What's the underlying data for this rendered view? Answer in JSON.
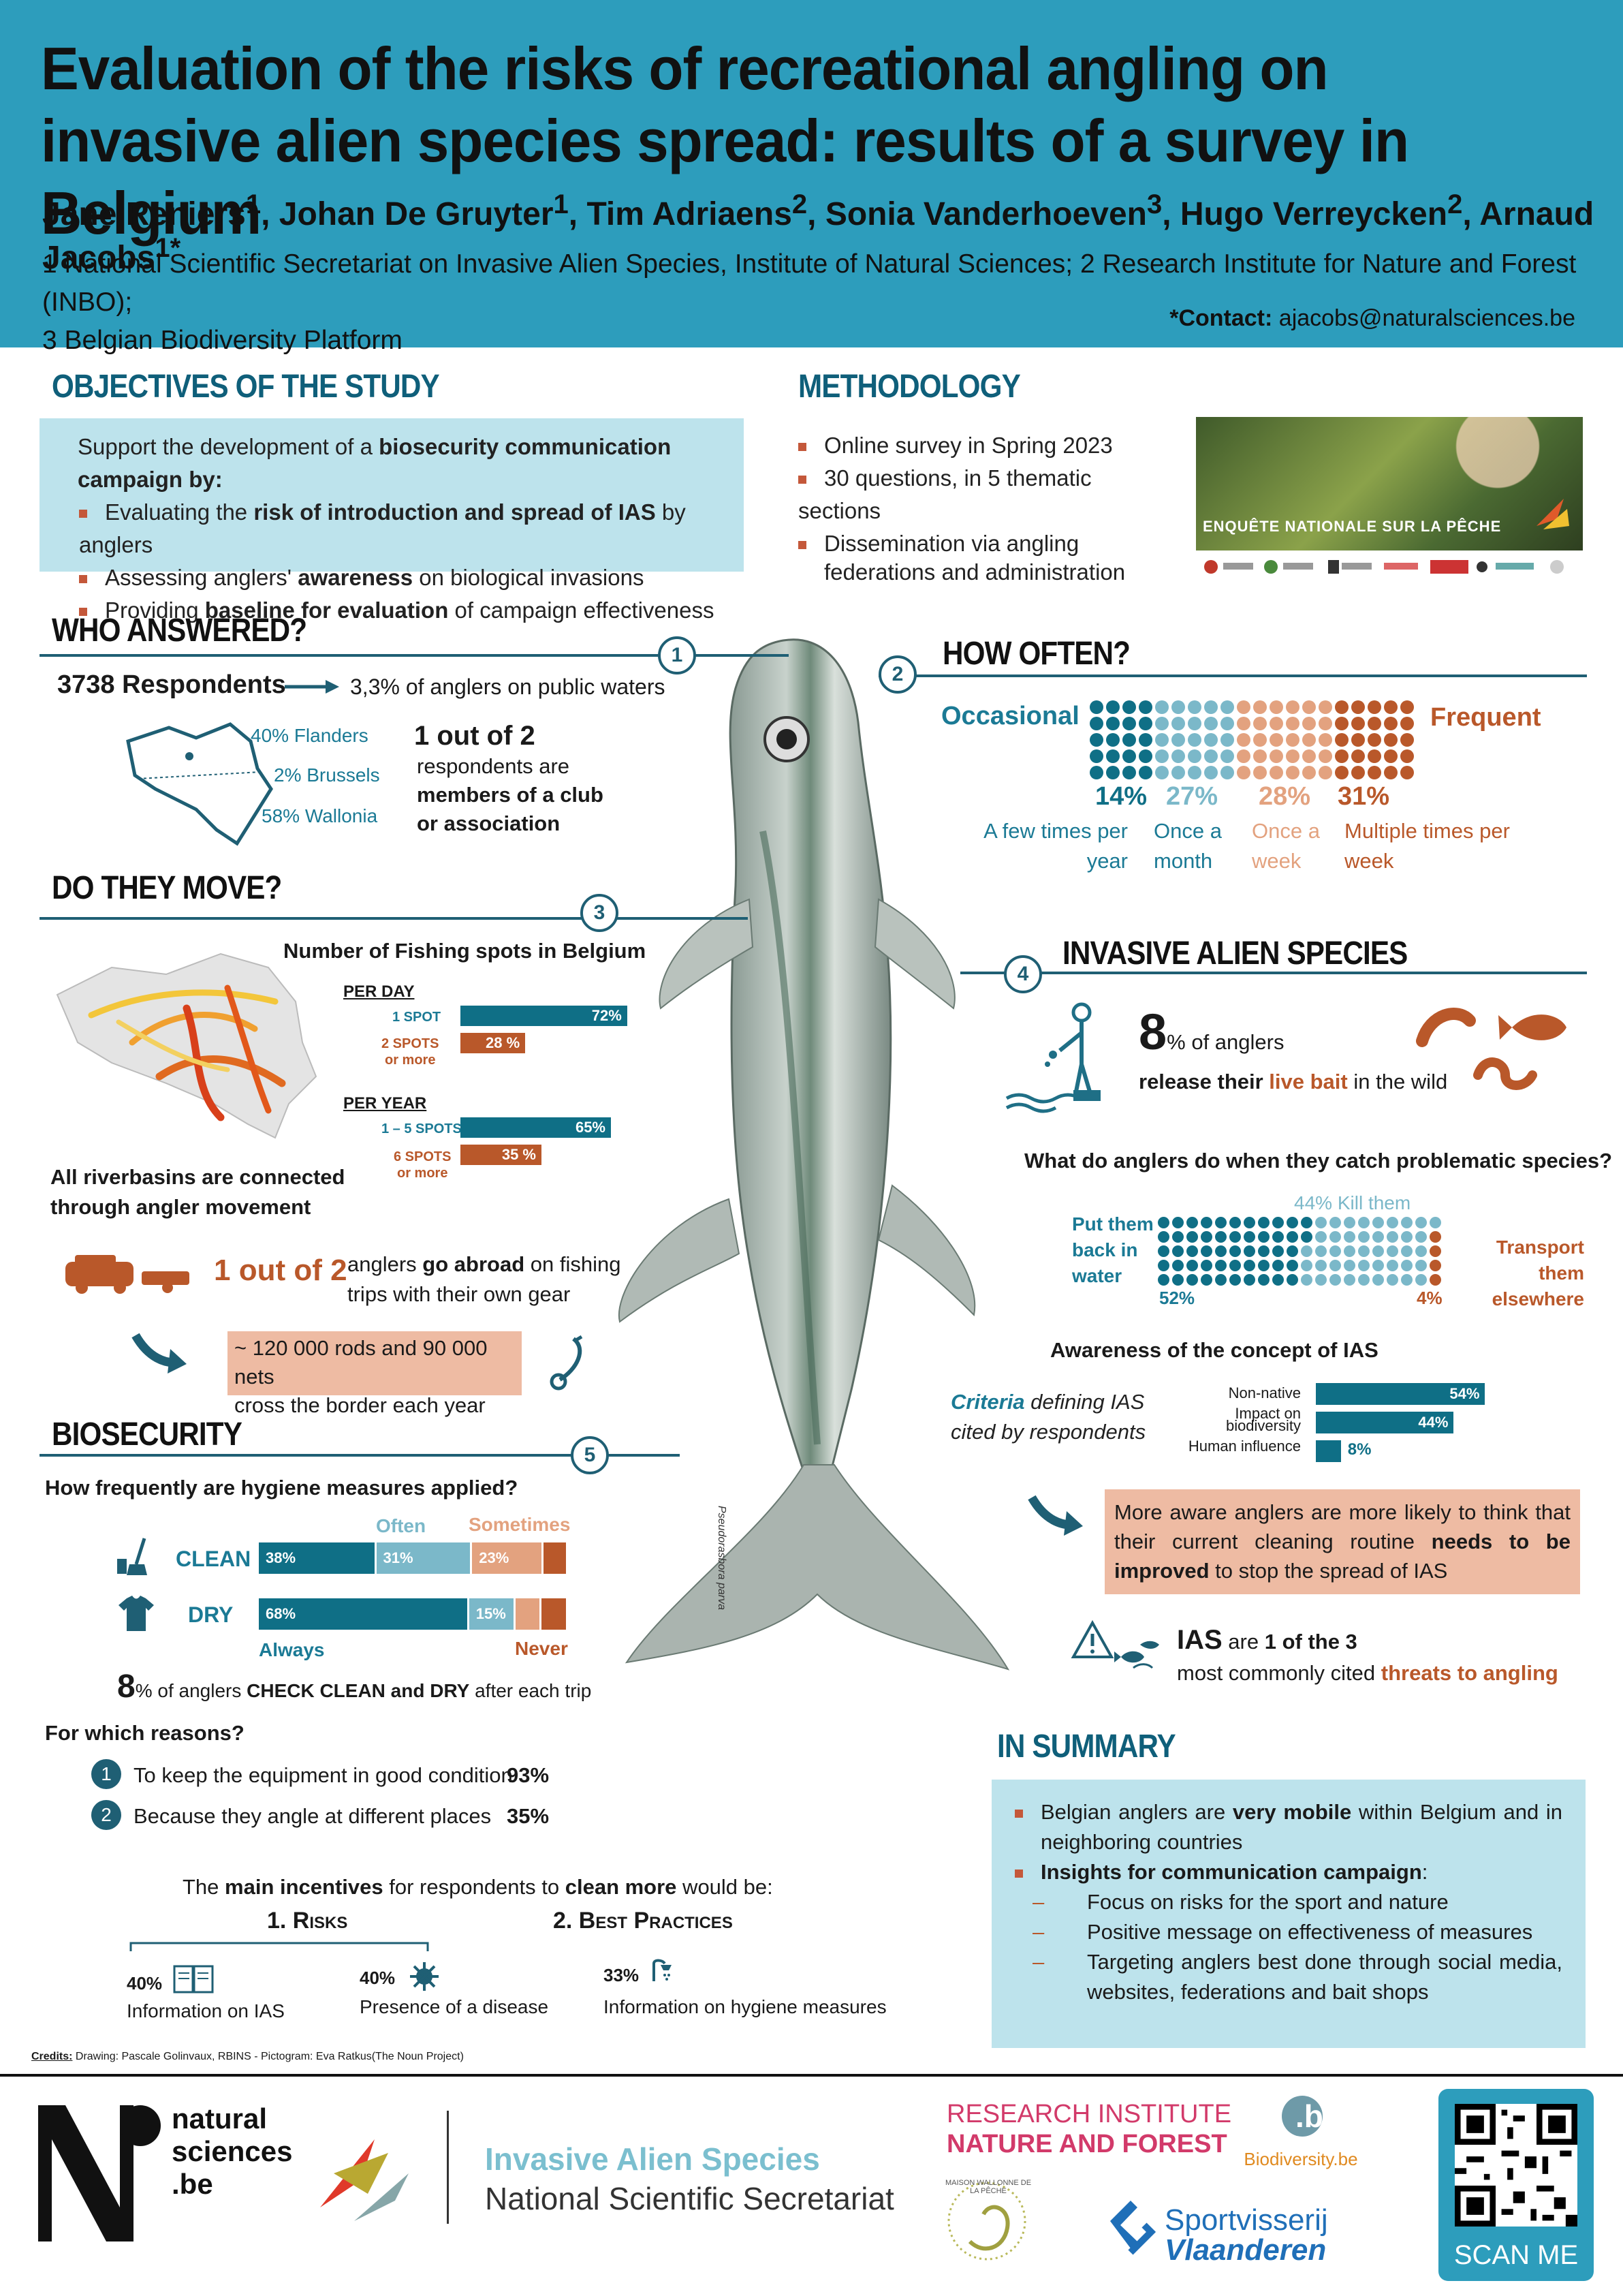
{
  "header": {
    "title": "Evaluation of the risks of recreational angling on invasive alien species spread: results of a survey in Belgium",
    "authors": "Jane Reniers1, Johan De Gruyter1, Tim Adriaens2, Sonia Vanderhoeven3, Hugo Verreycken2, Arnaud Jacobs1*",
    "affil1": "1 National Scientific Secretariat on Invasive Alien Species, Institute of Natural Sciences; 2 Research Institute for Nature and Forest (INBO);",
    "affil2": "3 Belgian Biodiversity Platform",
    "contact_label": "*Contact:",
    "contact_email": "ajacobs@naturalsciences.be"
  },
  "objectives": {
    "title": "OBJECTIVES OF THE STUDY",
    "intro_a": "Support the development of a ",
    "intro_b": "biosecurity communication campaign by:",
    "b1a": "Evaluating the ",
    "b1b": "risk of introduction and spread of IAS",
    "b1c": " by anglers",
    "b2a": "Assessing anglers' ",
    "b2b": "awareness",
    "b2c": " on biological invasions",
    "b3a": "Providing ",
    "b3b": "baseline for evaluation",
    "b3c": " of campaign effectiveness"
  },
  "methodology": {
    "title": "METHODOLOGY",
    "b1": "Online survey in Spring 2023",
    "b2": "30 questions, in 5 thematic sections",
    "b3a": "Dissemination via angling",
    "b3b": "federations and administration",
    "photo_caption": "ENQUÊTE NATIONALE SUR LA PÊCHE"
  },
  "who": {
    "title": "WHO ANSWERED?",
    "num": "1",
    "respondents": "3738 Respondents",
    "share": "3,3% of anglers on public waters",
    "flanders": "40% Flanders",
    "brussels": "2% Brussels",
    "wallonia": "58% Wallonia",
    "club1": "1 out of 2",
    "club2": "respondents are",
    "club3": "members of a club",
    "club4": "or association"
  },
  "how_often": {
    "title": "HOW OFTEN?",
    "num": "2",
    "left": "Occasional",
    "right": "Frequent",
    "colors": [
      "#0f6f86",
      "#7bb8c9",
      "#e3a27f",
      "#b9582a"
    ],
    "pcts": [
      "14%",
      "27%",
      "28%",
      "31%"
    ],
    "l1a": "A few times per",
    "l1b": "year",
    "l2a": "Once a",
    "l2b": "month",
    "l3a": "Once a",
    "l3b": "week",
    "l4a": "Multiple times per",
    "l4b": "week"
  },
  "move": {
    "title": "DO THEY MOVE?",
    "num": "3",
    "spots_title": "Number of Fishing spots in Belgium",
    "per_day": "PER DAY",
    "per_year": "PER YEAR",
    "d1": "1 SPOT",
    "d2a": "2 SPOTS",
    "d2b": "or more",
    "y1": "1 – 5 SPOTS",
    "y2a": "6 SPOTS",
    "y2b": "or more",
    "v72": "72%",
    "v28": "28 %",
    "v65": "65%",
    "v35": "35 %",
    "river1": "All riverbasins are connected",
    "river2": "through angler movement",
    "abroad_num": "1 out of 2",
    "abroad1a": "anglers ",
    "abroad1b": "go abroad",
    "abroad1c": " on fishing",
    "abroad2": "trips with their own gear",
    "border1": "~ 120 000 rods and 90 000 nets",
    "border2": "cross the border each year"
  },
  "ias": {
    "title": "INVASIVE ALIEN SPECIES",
    "num": "4",
    "big": "8",
    "pct": "% of anglers",
    "rel_a": "release their ",
    "rel_b": "live bait",
    "rel_c": " in the wild",
    "q": "What do anglers do when they catch problematic species?",
    "kill": "44% Kill them",
    "back1": "Put them",
    "back2": "back in",
    "back3": "water",
    "transport1": "Transport them",
    "transport2": "elsewhere",
    "p52": "52%",
    "p4": "4%",
    "aware": "Awareness of the concept of IAS",
    "crit_a": "Criteria",
    "crit_b": " defining IAS",
    "crit_c": "cited by respondents",
    "c1": "Non-native",
    "c2a": "Impact on",
    "c2b": "biodiversity",
    "c3": "Human influence",
    "v54": "54%",
    "v44": "44%",
    "v8": "8%",
    "more_a": "More aware anglers are more likely to think that their current cleaning routine ",
    "more_b": "needs to be improved",
    "more_c": " to stop the spread of IAS",
    "threat_a": "IAS",
    "threat_b": " are ",
    "threat_c": "1 of the 3",
    "threat_d": "most commonly cited ",
    "threat_e": "threats to angling"
  },
  "biosecurity": {
    "title": "BIOSECURITY",
    "num": "5",
    "q": "How frequently are hygiene measures applied?",
    "often": "Often",
    "sometimes": "Sometimes",
    "always": "Always",
    "never": "Never",
    "clean": "CLEAN",
    "dry": "DRY",
    "c38": "38%",
    "c31": "31%",
    "c23": "23%",
    "d68": "68%",
    "d15": "15%",
    "check_big": "8",
    "check_a": "% of anglers ",
    "check_b": "CHECK CLEAN and DRY",
    "check_c": " after each trip",
    "reasons": "For which reasons?",
    "r1": "To keep the equipment in good condition",
    "r1v": "93%",
    "r1n": "1",
    "r2": "Because they angle at different places",
    "r2v": "35%",
    "r2n": "2",
    "inc_a": "The ",
    "inc_b": "main incentives",
    "inc_c": " for respondents to ",
    "inc_d": "clean more",
    "inc_e": " would be:",
    "risks": "1. Risks",
    "best": "2. Best Practices",
    "i1v": "40%",
    "i1": "Information on IAS",
    "i2v": "40%",
    "i2": "Presence of a disease",
    "i3v": "33%",
    "i3": "Information on hygiene measures"
  },
  "summary": {
    "title": "IN SUMMARY",
    "b1a": "Belgian anglers are ",
    "b1b": "very mobile",
    "b1c": " within Belgium and in neighboring countries",
    "b2": "Insights for communication campaign",
    "s1": "Focus on risks for the sport and nature",
    "s2": "Positive message on effectiveness of measures",
    "s3": "Targeting anglers best done through social media, websites, federations and bait shops"
  },
  "fish_label": "Pseudorasbora parva",
  "credits_label": "Credits:",
  "credits": " Drawing: Pascale Golinvaux, RBINS - Pictogram: Eva Ratkus(The Noun Project)",
  "footer": {
    "ns1": "natural",
    "ns2": "sciences",
    "ns3": ".be",
    "ias1": "Invasive Alien Species",
    "ias2": "National Scientific Secretariat",
    "inbo1": "RESEARCH INSTITUTE",
    "inbo2": "NATURE AND FOREST",
    "biodiv": "Biodiversity.be",
    "mwp": "MAISON WALLONNE DE LA PÊCHE",
    "sv1": "Sportvisserij",
    "sv2": "Vlaanderen",
    "scan": "SCAN ME"
  },
  "chart_data": [
    {
      "type": "bar",
      "title": "Number of Fishing spots in Belgium",
      "groups": [
        {
          "name": "PER DAY",
          "categories": [
            "1 SPOT",
            "2 SPOTS or more"
          ],
          "values": [
            72,
            28
          ]
        },
        {
          "name": "PER YEAR",
          "categories": [
            "1 – 5 SPOTS",
            "6 SPOTS or more"
          ],
          "values": [
            65,
            35
          ]
        }
      ]
    },
    {
      "type": "bar",
      "title": "How frequently are hygiene measures applied?",
      "categories": [
        "CLEAN",
        "DRY"
      ],
      "series": [
        {
          "name": "Always",
          "values": [
            38,
            68
          ]
        },
        {
          "name": "Often",
          "values": [
            31,
            15
          ]
        },
        {
          "name": "Sometimes",
          "values": [
            23,
            null
          ]
        },
        {
          "name": "Never",
          "values": [
            null,
            null
          ]
        }
      ]
    },
    {
      "type": "bar",
      "title": "Awareness of the concept of IAS",
      "categories": [
        "Non-native",
        "Impact on biodiversity",
        "Human influence"
      ],
      "values": [
        54,
        44,
        8
      ]
    }
  ]
}
